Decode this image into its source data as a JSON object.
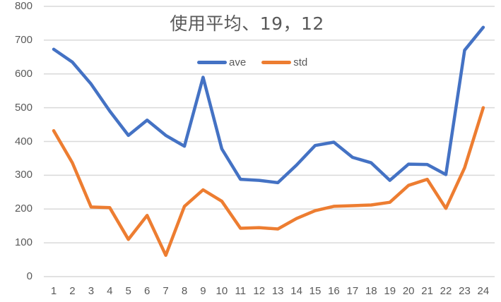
{
  "chart": {
    "title": "使用平均、19，12",
    "legend": [
      {
        "label": "ave",
        "color": "#4472C4"
      },
      {
        "label": "std",
        "color": "#ED7D31"
      }
    ],
    "y_ticks": [
      "800",
      "700",
      "600",
      "500",
      "400",
      "300",
      "200",
      "100",
      "0"
    ],
    "x_ticks": [
      "1",
      "2",
      "3",
      "4",
      "5",
      "6",
      "7",
      "8",
      "9",
      "10",
      "11",
      "12",
      "13",
      "14",
      "15",
      "16",
      "17",
      "18",
      "19",
      "20",
      "21",
      "22",
      "23",
      "24"
    ]
  },
  "chart_data": {
    "type": "line",
    "title": "使用平均、19，12",
    "xlabel": "",
    "ylabel": "",
    "ylim": [
      0,
      800
    ],
    "y_tick_step": 100,
    "grid": true,
    "legend_position": "top",
    "categories": [
      1,
      2,
      3,
      4,
      5,
      6,
      7,
      8,
      9,
      10,
      11,
      12,
      13,
      14,
      15,
      16,
      17,
      18,
      19,
      20,
      21,
      22,
      23,
      24
    ],
    "series": [
      {
        "name": "ave",
        "color": "#4472C4",
        "values": [
          673,
          635,
          570,
          490,
          418,
          463,
          418,
          386,
          590,
          378,
          288,
          285,
          278,
          330,
          388,
          398,
          353,
          337,
          285,
          333,
          332,
          302,
          670,
          738
        ]
      },
      {
        "name": "std",
        "color": "#ED7D31",
        "values": [
          432,
          337,
          206,
          204,
          110,
          181,
          63,
          208,
          257,
          223,
          143,
          145,
          141,
          172,
          195,
          208,
          210,
          212,
          220,
          270,
          288,
          202,
          322,
          500
        ]
      }
    ]
  }
}
